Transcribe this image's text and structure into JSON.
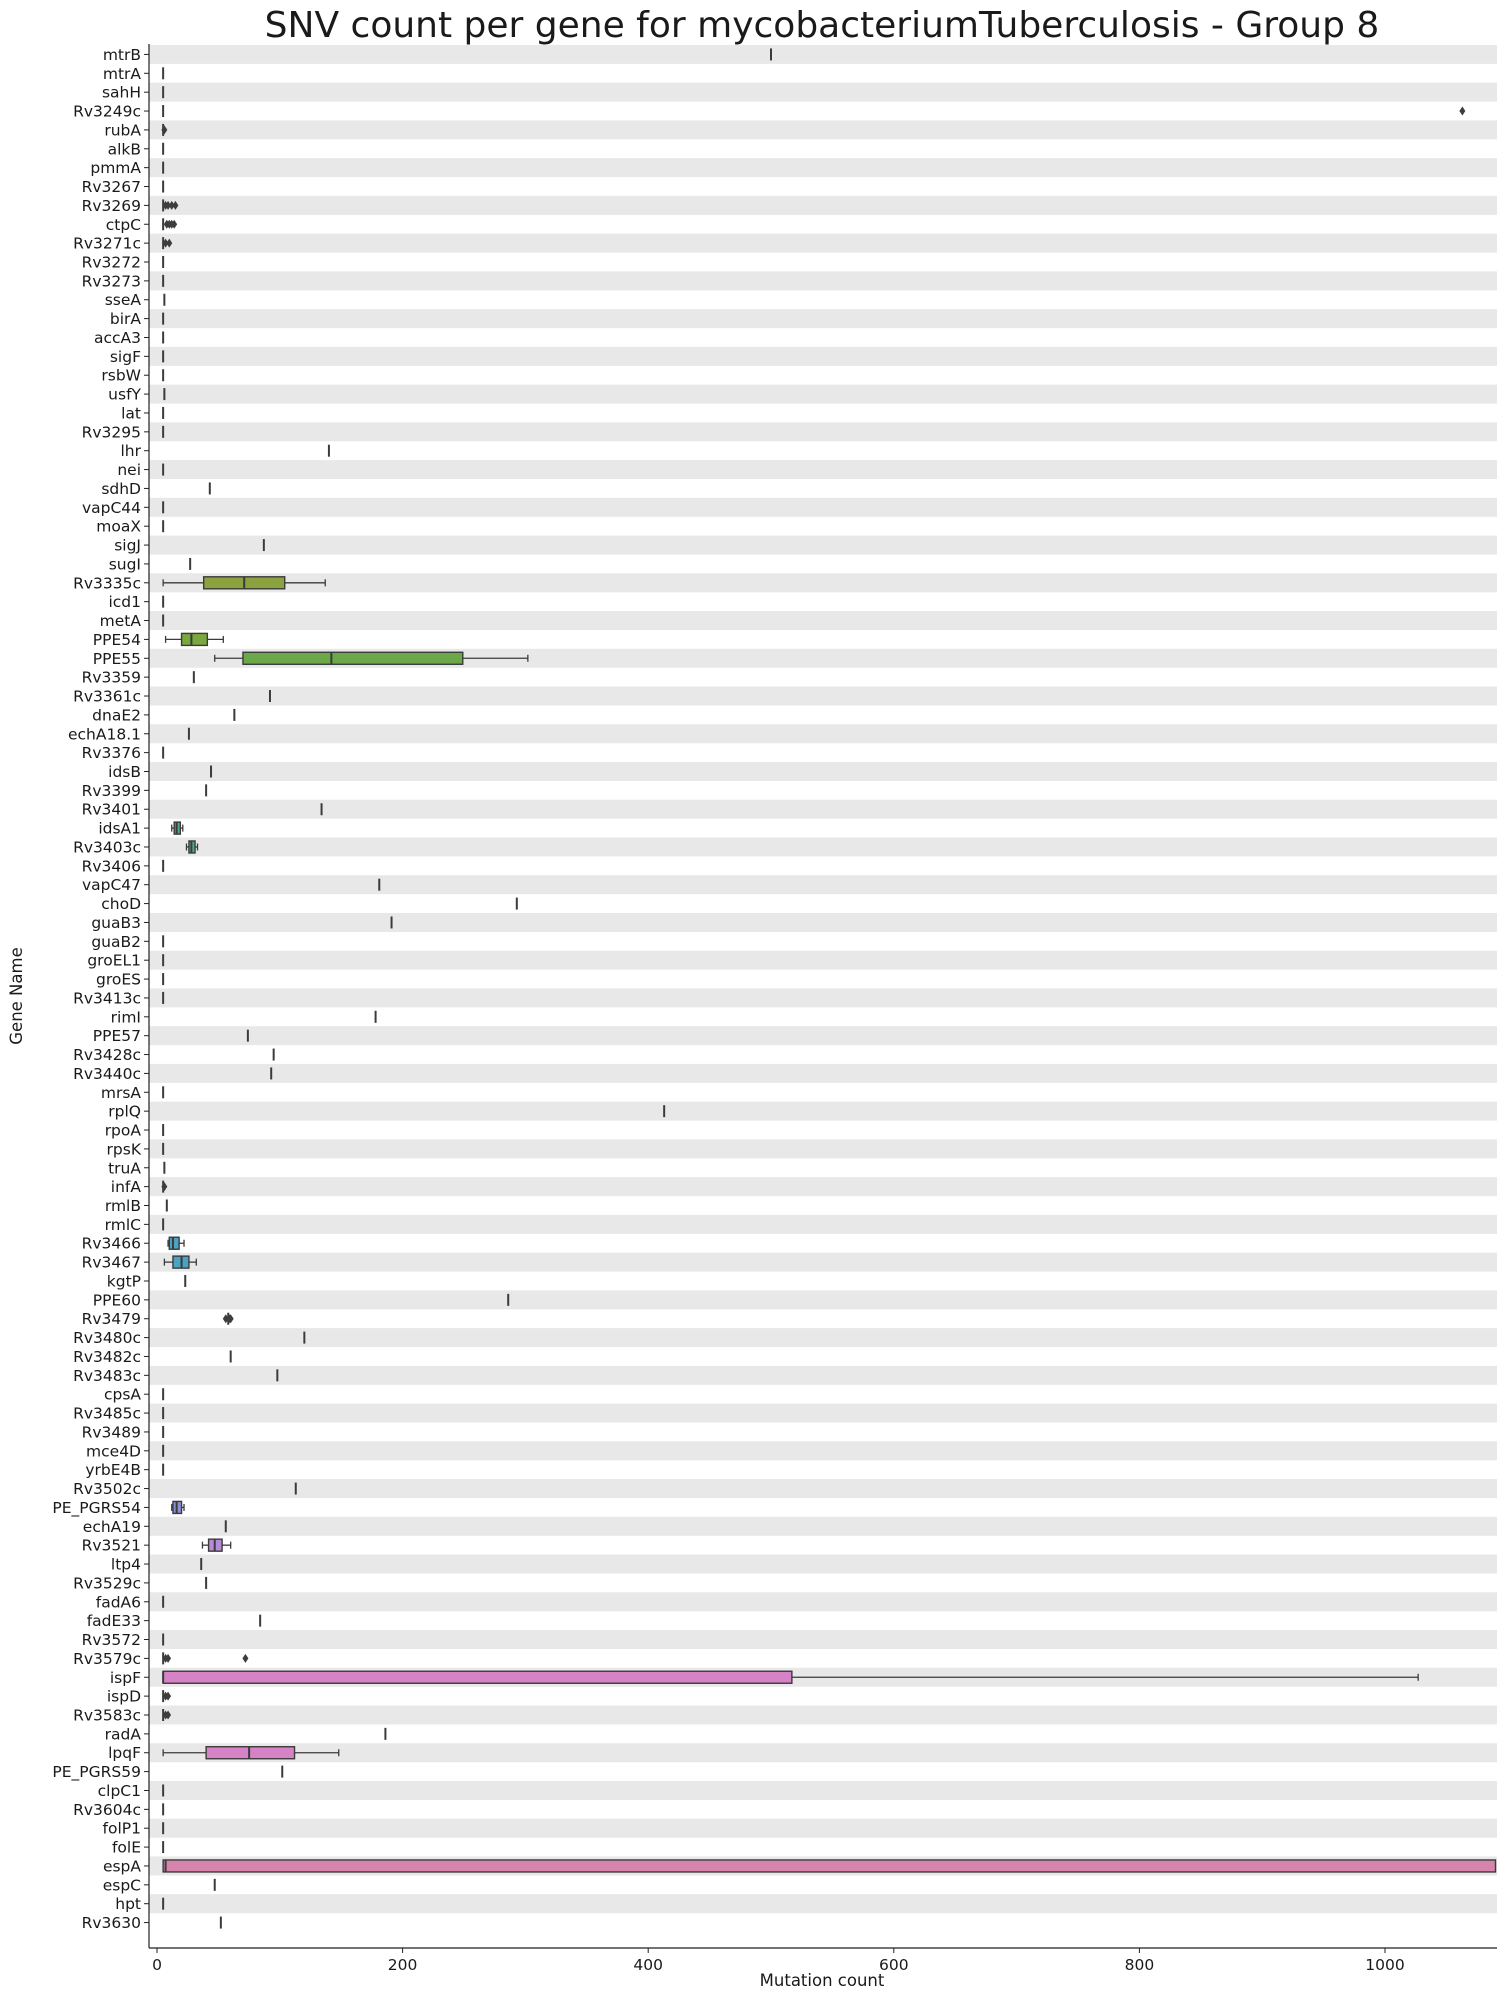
{
  "chart_data": {
    "type": "box",
    "title": "SNV count per gene for mycobacteriumTuberculosis - Group 8",
    "xlabel": "Mutation count",
    "ylabel": "Gene Name",
    "xlim": [
      -10,
      1095
    ],
    "xticks": [
      {
        "value": 0,
        "label": "0"
      },
      {
        "value": 200,
        "label": "200"
      },
      {
        "value": 400,
        "label": "400"
      },
      {
        "value": 600,
        "label": "600"
      },
      {
        "value": 800,
        "label": "800"
      },
      {
        "value": 1000,
        "label": "1000"
      }
    ],
    "row_band_color": "#e8e8e8",
    "categories": [
      {
        "gene": "mtrB",
        "min": 500,
        "q1": 500,
        "median": 500,
        "q3": 500,
        "max": 500,
        "outliers": [],
        "color": "#e1827a"
      },
      {
        "gene": "mtrA",
        "min": 5,
        "q1": 5,
        "median": 5,
        "q3": 5,
        "max": 5,
        "outliers": [],
        "color": "#e1827a"
      },
      {
        "gene": "sahH",
        "min": 5,
        "q1": 5,
        "median": 5,
        "q3": 5,
        "max": 5,
        "outliers": [],
        "color": "#e1827a"
      },
      {
        "gene": "Rv3249c",
        "min": 5,
        "q1": 5,
        "median": 5,
        "q3": 5,
        "max": 5,
        "outliers": [
          1063
        ],
        "color": "#e1827a"
      },
      {
        "gene": "rubA",
        "min": 5,
        "q1": 5,
        "median": 5,
        "q3": 5,
        "max": 5,
        "outliers": [
          6
        ],
        "color": "#e1827a"
      },
      {
        "gene": "alkB",
        "min": 5,
        "q1": 5,
        "median": 5,
        "q3": 5,
        "max": 5,
        "outliers": [],
        "color": "#e1827a"
      },
      {
        "gene": "pmmA",
        "min": 5,
        "q1": 5,
        "median": 5,
        "q3": 5,
        "max": 5,
        "outliers": [],
        "color": "#e1827a"
      },
      {
        "gene": "Rv3267",
        "min": 5,
        "q1": 5,
        "median": 5,
        "q3": 5,
        "max": 5,
        "outliers": [],
        "color": "#e1827a"
      },
      {
        "gene": "Rv3269",
        "min": 5,
        "q1": 5,
        "median": 5,
        "q3": 5,
        "max": 5,
        "outliers": [
          7,
          9,
          12,
          15
        ],
        "color": "#e1827a"
      },
      {
        "gene": "ctpC",
        "min": 5,
        "q1": 5,
        "median": 5,
        "q3": 5,
        "max": 5,
        "outliers": [
          8,
          10,
          12,
          14
        ],
        "color": "#e1827a"
      },
      {
        "gene": "Rv3271c",
        "min": 5,
        "q1": 5,
        "median": 5,
        "q3": 5,
        "max": 5,
        "outliers": [
          7,
          10
        ],
        "color": "#e1827a"
      },
      {
        "gene": "Rv3272",
        "min": 5,
        "q1": 5,
        "median": 5,
        "q3": 5,
        "max": 5,
        "outliers": [],
        "color": "#e1827a"
      },
      {
        "gene": "Rv3273",
        "min": 5,
        "q1": 5,
        "median": 5,
        "q3": 5,
        "max": 5,
        "outliers": [],
        "color": "#e1827a"
      },
      {
        "gene": "sseA",
        "min": 6,
        "q1": 6,
        "median": 6,
        "q3": 6,
        "max": 6,
        "outliers": [],
        "color": "#e1827a"
      },
      {
        "gene": "birA",
        "min": 5,
        "q1": 5,
        "median": 5,
        "q3": 5,
        "max": 5,
        "outliers": [],
        "color": "#e1827a"
      },
      {
        "gene": "accA3",
        "min": 5,
        "q1": 5,
        "median": 5,
        "q3": 5,
        "max": 5,
        "outliers": [],
        "color": "#e1827a"
      },
      {
        "gene": "sigF",
        "min": 5,
        "q1": 5,
        "median": 5,
        "q3": 5,
        "max": 5,
        "outliers": [],
        "color": "#e1827a"
      },
      {
        "gene": "rsbW",
        "min": 5,
        "q1": 5,
        "median": 5,
        "q3": 5,
        "max": 5,
        "outliers": [],
        "color": "#e1827a"
      },
      {
        "gene": "usfY",
        "min": 6,
        "q1": 6,
        "median": 6,
        "q3": 6,
        "max": 6,
        "outliers": [],
        "color": "#e1827a"
      },
      {
        "gene": "lat",
        "min": 5,
        "q1": 5,
        "median": 5,
        "q3": 5,
        "max": 5,
        "outliers": [],
        "color": "#e1827a"
      },
      {
        "gene": "Rv3295",
        "min": 5,
        "q1": 5,
        "median": 5,
        "q3": 5,
        "max": 5,
        "outliers": [],
        "color": "#e1827a"
      },
      {
        "gene": "lhr",
        "min": 140,
        "q1": 140,
        "median": 140,
        "q3": 140,
        "max": 140,
        "outliers": [],
        "color": "#d49440"
      },
      {
        "gene": "nei",
        "min": 5,
        "q1": 5,
        "median": 5,
        "q3": 5,
        "max": 5,
        "outliers": [],
        "color": "#d49440"
      },
      {
        "gene": "sdhD",
        "min": 43,
        "q1": 43,
        "median": 43,
        "q3": 43,
        "max": 43,
        "outliers": [],
        "color": "#d49440"
      },
      {
        "gene": "vapC44",
        "min": 5,
        "q1": 5,
        "median": 5,
        "q3": 5,
        "max": 5,
        "outliers": [],
        "color": "#d49440"
      },
      {
        "gene": "moaX",
        "min": 5,
        "q1": 5,
        "median": 5,
        "q3": 5,
        "max": 5,
        "outliers": [],
        "color": "#d49440"
      },
      {
        "gene": "sigJ",
        "min": 87,
        "q1": 87,
        "median": 87,
        "q3": 87,
        "max": 87,
        "outliers": [],
        "color": "#b9a43e"
      },
      {
        "gene": "sugI",
        "min": 27,
        "q1": 27,
        "median": 27,
        "q3": 27,
        "max": 27,
        "outliers": [],
        "color": "#b9a43e"
      },
      {
        "gene": "Rv3335c",
        "min": 5,
        "q1": 38,
        "median": 71,
        "q3": 104,
        "max": 137,
        "outliers": [],
        "color": "#8ba23e"
      },
      {
        "gene": "icd1",
        "min": 5,
        "q1": 5,
        "median": 5,
        "q3": 5,
        "max": 5,
        "outliers": [],
        "color": "#8ba23e"
      },
      {
        "gene": "metA",
        "min": 5,
        "q1": 5,
        "median": 5,
        "q3": 5,
        "max": 5,
        "outliers": [],
        "color": "#8ba23e"
      },
      {
        "gene": "PPE54",
        "min": 7,
        "q1": 20,
        "median": 28,
        "q3": 41,
        "max": 54,
        "outliers": [],
        "color": "#7aa83e"
      },
      {
        "gene": "PPE55",
        "min": 47,
        "q1": 70,
        "median": 142,
        "q3": 249,
        "max": 302,
        "outliers": [],
        "color": "#6aa84a"
      },
      {
        "gene": "Rv3359",
        "min": 30,
        "q1": 30,
        "median": 30,
        "q3": 30,
        "max": 30,
        "outliers": [],
        "color": "#56ab5a"
      },
      {
        "gene": "Rv3361c",
        "min": 92,
        "q1": 92,
        "median": 92,
        "q3": 92,
        "max": 92,
        "outliers": [],
        "color": "#56ab5a"
      },
      {
        "gene": "dnaE2",
        "min": 63,
        "q1": 63,
        "median": 63,
        "q3": 63,
        "max": 63,
        "outliers": [],
        "color": "#56ab5a"
      },
      {
        "gene": "echA18.1",
        "min": 26,
        "q1": 26,
        "median": 26,
        "q3": 26,
        "max": 26,
        "outliers": [],
        "color": "#56ab5a"
      },
      {
        "gene": "Rv3376",
        "min": 5,
        "q1": 5,
        "median": 5,
        "q3": 5,
        "max": 5,
        "outliers": [],
        "color": "#56ab5a"
      },
      {
        "gene": "idsB",
        "min": 44,
        "q1": 44,
        "median": 44,
        "q3": 44,
        "max": 44,
        "outliers": [],
        "color": "#56ab5a"
      },
      {
        "gene": "Rv3399",
        "min": 40,
        "q1": 40,
        "median": 40,
        "q3": 40,
        "max": 40,
        "outliers": [],
        "color": "#56ab5a"
      },
      {
        "gene": "Rv3401",
        "min": 134,
        "q1": 134,
        "median": 134,
        "q3": 134,
        "max": 134,
        "outliers": [],
        "color": "#4fab86"
      },
      {
        "gene": "idsA1",
        "min": 12,
        "q1": 14,
        "median": 16,
        "q3": 19,
        "max": 21,
        "outliers": [],
        "color": "#4fab86"
      },
      {
        "gene": "Rv3403c",
        "min": 24,
        "q1": 26,
        "median": 28,
        "q3": 31,
        "max": 33,
        "outliers": [],
        "color": "#4fab86"
      },
      {
        "gene": "Rv3406",
        "min": 5,
        "q1": 5,
        "median": 5,
        "q3": 5,
        "max": 5,
        "outliers": [],
        "color": "#4fab86"
      },
      {
        "gene": "vapC47",
        "min": 181,
        "q1": 181,
        "median": 181,
        "q3": 181,
        "max": 181,
        "outliers": [],
        "color": "#4fab86"
      },
      {
        "gene": "choD",
        "min": 293,
        "q1": 293,
        "median": 293,
        "q3": 293,
        "max": 293,
        "outliers": [],
        "color": "#4fab86"
      },
      {
        "gene": "guaB3",
        "min": 191,
        "q1": 191,
        "median": 191,
        "q3": 191,
        "max": 191,
        "outliers": [],
        "color": "#4fab86"
      },
      {
        "gene": "guaB2",
        "min": 5,
        "q1": 5,
        "median": 5,
        "q3": 5,
        "max": 5,
        "outliers": [],
        "color": "#4fab86"
      },
      {
        "gene": "groEL1",
        "min": 5,
        "q1": 5,
        "median": 5,
        "q3": 5,
        "max": 5,
        "outliers": [],
        "color": "#4fab86"
      },
      {
        "gene": "groES",
        "min": 5,
        "q1": 5,
        "median": 5,
        "q3": 5,
        "max": 5,
        "outliers": [],
        "color": "#4fab86"
      },
      {
        "gene": "Rv3413c",
        "min": 5,
        "q1": 5,
        "median": 5,
        "q3": 5,
        "max": 5,
        "outliers": [],
        "color": "#4fab86"
      },
      {
        "gene": "rimI",
        "min": 178,
        "q1": 178,
        "median": 178,
        "q3": 178,
        "max": 178,
        "outliers": [],
        "color": "#4aa6a0"
      },
      {
        "gene": "PPE57",
        "min": 74,
        "q1": 74,
        "median": 74,
        "q3": 74,
        "max": 74,
        "outliers": [],
        "color": "#4aa6a0"
      },
      {
        "gene": "Rv3428c",
        "min": 95,
        "q1": 95,
        "median": 95,
        "q3": 95,
        "max": 95,
        "outliers": [],
        "color": "#4aa6a0"
      },
      {
        "gene": "Rv3440c",
        "min": 93,
        "q1": 93,
        "median": 93,
        "q3": 93,
        "max": 93,
        "outliers": [],
        "color": "#4aa6a0"
      },
      {
        "gene": "mrsA",
        "min": 5,
        "q1": 5,
        "median": 5,
        "q3": 5,
        "max": 5,
        "outliers": [],
        "color": "#4aa6a0"
      },
      {
        "gene": "rplQ",
        "min": 413,
        "q1": 413,
        "median": 413,
        "q3": 413,
        "max": 413,
        "outliers": [],
        "color": "#4aa6a0"
      },
      {
        "gene": "rpoA",
        "min": 5,
        "q1": 5,
        "median": 5,
        "q3": 5,
        "max": 5,
        "outliers": [],
        "color": "#4aa6a0"
      },
      {
        "gene": "rpsK",
        "min": 5,
        "q1": 5,
        "median": 5,
        "q3": 5,
        "max": 5,
        "outliers": [],
        "color": "#4aa6a0"
      },
      {
        "gene": "truA",
        "min": 6,
        "q1": 6,
        "median": 6,
        "q3": 6,
        "max": 6,
        "outliers": [],
        "color": "#4aa6a0"
      },
      {
        "gene": "infA",
        "min": 5,
        "q1": 5,
        "median": 5,
        "q3": 5,
        "max": 5,
        "outliers": [
          6
        ],
        "color": "#4aa6a0"
      },
      {
        "gene": "rmlB",
        "min": 8,
        "q1": 8,
        "median": 8,
        "q3": 8,
        "max": 8,
        "outliers": [],
        "color": "#4aa6a0"
      },
      {
        "gene": "rmlC",
        "min": 5,
        "q1": 5,
        "median": 5,
        "q3": 5,
        "max": 5,
        "outliers": [],
        "color": "#4aa6a0"
      },
      {
        "gene": "Rv3466",
        "min": 9,
        "q1": 10,
        "median": 13,
        "q3": 18,
        "max": 22,
        "outliers": [],
        "color": "#4aa3c3"
      },
      {
        "gene": "Rv3467",
        "min": 6,
        "q1": 13,
        "median": 20,
        "q3": 26,
        "max": 32,
        "outliers": [],
        "color": "#4aa3c3"
      },
      {
        "gene": "kgtP",
        "min": 23,
        "q1": 23,
        "median": 23,
        "q3": 23,
        "max": 23,
        "outliers": [],
        "color": "#4aa3c3"
      },
      {
        "gene": "PPE60",
        "min": 286,
        "q1": 286,
        "median": 286,
        "q3": 286,
        "max": 286,
        "outliers": [],
        "color": "#4aa3c3"
      },
      {
        "gene": "Rv3479",
        "min": 58,
        "q1": 58,
        "median": 58,
        "q3": 58,
        "max": 58,
        "outliers": [
          56,
          59,
          60
        ],
        "color": "#4aa3c3"
      },
      {
        "gene": "Rv3480c",
        "min": 120,
        "q1": 120,
        "median": 120,
        "q3": 120,
        "max": 120,
        "outliers": [],
        "color": "#5a9ad3"
      },
      {
        "gene": "Rv3482c",
        "min": 60,
        "q1": 60,
        "median": 60,
        "q3": 60,
        "max": 60,
        "outliers": [],
        "color": "#5a9ad3"
      },
      {
        "gene": "Rv3483c",
        "min": 98,
        "q1": 98,
        "median": 98,
        "q3": 98,
        "max": 98,
        "outliers": [],
        "color": "#5a9ad3"
      },
      {
        "gene": "cpsA",
        "min": 5,
        "q1": 5,
        "median": 5,
        "q3": 5,
        "max": 5,
        "outliers": [],
        "color": "#5a9ad3"
      },
      {
        "gene": "Rv3485c",
        "min": 5,
        "q1": 5,
        "median": 5,
        "q3": 5,
        "max": 5,
        "outliers": [],
        "color": "#5a9ad3"
      },
      {
        "gene": "Rv3489",
        "min": 5,
        "q1": 5,
        "median": 5,
        "q3": 5,
        "max": 5,
        "outliers": [],
        "color": "#5a9ad3"
      },
      {
        "gene": "mce4D",
        "min": 5,
        "q1": 5,
        "median": 5,
        "q3": 5,
        "max": 5,
        "outliers": [],
        "color": "#5a9ad3"
      },
      {
        "gene": "yrbE4B",
        "min": 5,
        "q1": 5,
        "median": 5,
        "q3": 5,
        "max": 5,
        "outliers": [],
        "color": "#5a9ad3"
      },
      {
        "gene": "Rv3502c",
        "min": 113,
        "q1": 113,
        "median": 113,
        "q3": 113,
        "max": 113,
        "outliers": [],
        "color": "#8a8fd8"
      },
      {
        "gene": "PE_PGRS54",
        "min": 12,
        "q1": 13,
        "median": 16,
        "q3": 20,
        "max": 22,
        "outliers": [],
        "color": "#8a8fd8"
      },
      {
        "gene": "echA19",
        "min": 56,
        "q1": 56,
        "median": 56,
        "q3": 56,
        "max": 56,
        "outliers": [],
        "color": "#a28ad8"
      },
      {
        "gene": "Rv3521",
        "min": 37,
        "q1": 42,
        "median": 47,
        "q3": 53,
        "max": 60,
        "outliers": [],
        "color": "#b98ad8"
      },
      {
        "gene": "ltp4",
        "min": 36,
        "q1": 36,
        "median": 36,
        "q3": 36,
        "max": 36,
        "outliers": [],
        "color": "#b98ad8"
      },
      {
        "gene": "Rv3529c",
        "min": 40,
        "q1": 40,
        "median": 40,
        "q3": 40,
        "max": 40,
        "outliers": [],
        "color": "#b98ad8"
      },
      {
        "gene": "fadA6",
        "min": 5,
        "q1": 5,
        "median": 5,
        "q3": 5,
        "max": 5,
        "outliers": [],
        "color": "#c88ad3"
      },
      {
        "gene": "fadE33",
        "min": 84,
        "q1": 84,
        "median": 84,
        "q3": 84,
        "max": 84,
        "outliers": [],
        "color": "#c88ad3"
      },
      {
        "gene": "Rv3572",
        "min": 5,
        "q1": 5,
        "median": 5,
        "q3": 5,
        "max": 5,
        "outliers": [],
        "color": "#c88ad3"
      },
      {
        "gene": "Rv3579c",
        "min": 5,
        "q1": 5,
        "median": 5,
        "q3": 5,
        "max": 5,
        "outliers": [
          7,
          9,
          72
        ],
        "color": "#c88ad3"
      },
      {
        "gene": "ispF",
        "min": 5,
        "q1": 5,
        "median": 5,
        "q3": 517,
        "max": 1027,
        "outliers": [],
        "color": "#d582c7"
      },
      {
        "gene": "ispD",
        "min": 5,
        "q1": 5,
        "median": 5,
        "q3": 5,
        "max": 5,
        "outliers": [
          7,
          9
        ],
        "color": "#d582c7"
      },
      {
        "gene": "Rv3583c",
        "min": 5,
        "q1": 5,
        "median": 5,
        "q3": 5,
        "max": 5,
        "outliers": [
          7,
          9
        ],
        "color": "#d582c7"
      },
      {
        "gene": "radA",
        "min": 186,
        "q1": 186,
        "median": 186,
        "q3": 186,
        "max": 186,
        "outliers": [],
        "color": "#d582c7"
      },
      {
        "gene": "lpqF",
        "min": 5,
        "q1": 40,
        "median": 75,
        "q3": 112,
        "max": 148,
        "outliers": [],
        "color": "#d582c7"
      },
      {
        "gene": "PE_PGRS59",
        "min": 102,
        "q1": 102,
        "median": 102,
        "q3": 102,
        "max": 102,
        "outliers": [],
        "color": "#d582c7"
      },
      {
        "gene": "clpC1",
        "min": 5,
        "q1": 5,
        "median": 5,
        "q3": 5,
        "max": 5,
        "outliers": [],
        "color": "#d582c7"
      },
      {
        "gene": "Rv3604c",
        "min": 5,
        "q1": 5,
        "median": 5,
        "q3": 5,
        "max": 5,
        "outliers": [],
        "color": "#d582c7"
      },
      {
        "gene": "folP1",
        "min": 5,
        "q1": 5,
        "median": 5,
        "q3": 5,
        "max": 5,
        "outliers": [],
        "color": "#d582c7"
      },
      {
        "gene": "folE",
        "min": 5,
        "q1": 5,
        "median": 5,
        "q3": 5,
        "max": 5,
        "outliers": [],
        "color": "#d582c7"
      },
      {
        "gene": "espA",
        "min": 5,
        "q1": 5,
        "median": 7,
        "q3": 1090,
        "max": 1090,
        "outliers": [],
        "color": "#d784ad"
      },
      {
        "gene": "espC",
        "min": 47,
        "q1": 47,
        "median": 47,
        "q3": 47,
        "max": 47,
        "outliers": [],
        "color": "#d784ad"
      },
      {
        "gene": "hpt",
        "min": 5,
        "q1": 5,
        "median": 5,
        "q3": 5,
        "max": 5,
        "outliers": [],
        "color": "#d784ad"
      },
      {
        "gene": "Rv3630",
        "min": 52,
        "q1": 52,
        "median": 52,
        "q3": 52,
        "max": 52,
        "outliers": [],
        "color": "#d784ad"
      }
    ]
  }
}
